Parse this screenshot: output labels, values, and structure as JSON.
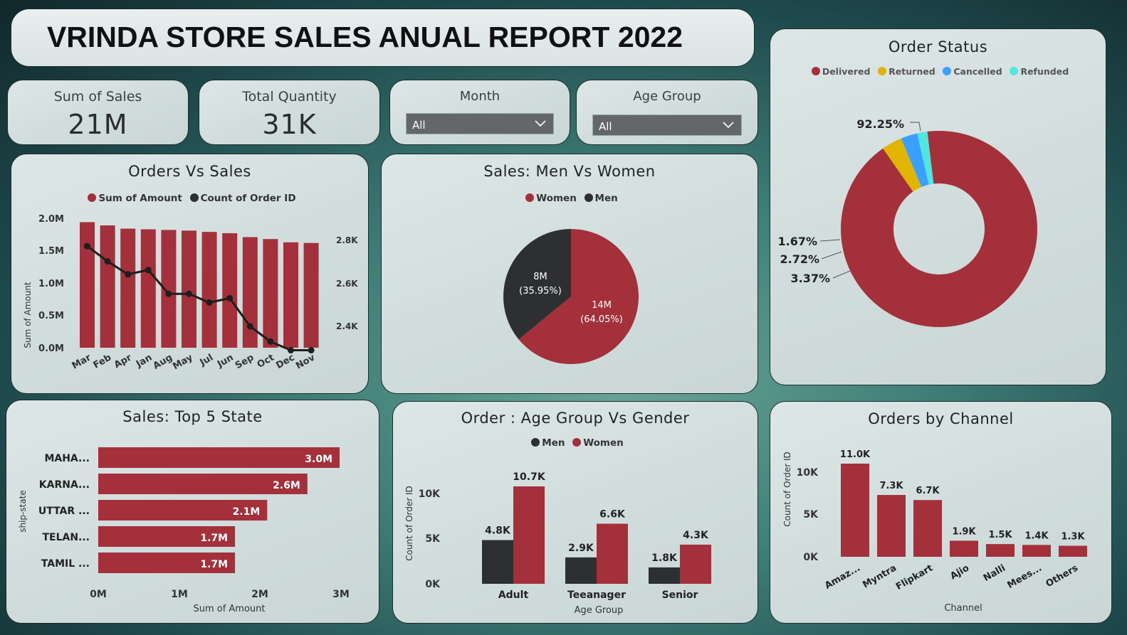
{
  "title": "VRINDA STORE SALES ANUAL REPORT 2022",
  "kpis": {
    "sales": {
      "label": "Sum of Sales",
      "value": "21M"
    },
    "quantity": {
      "label": "Total Quantity",
      "value": "31K"
    }
  },
  "slicers": {
    "month": {
      "label": "Month",
      "value": "All"
    },
    "age_group": {
      "label": "Age Group",
      "value": "All"
    }
  },
  "colors": {
    "red": "#a3303a",
    "dark": "#2d2f31",
    "yellow": "#e0b400",
    "blue": "#3aa0ff",
    "cyan": "#4fe8e0"
  },
  "charts": {
    "orders_vs_sales": {
      "title": "Orders Vs Sales",
      "legend": [
        "Sum of Amount",
        "Count of Order ID"
      ],
      "ylabel": "Sum of Amount",
      "y_ticks": [
        "2.0M",
        "1.5M",
        "1.0M",
        "0.5M",
        "0.0M"
      ],
      "y2_ticks": [
        "2.8K",
        "2.6K",
        "2.4K"
      ]
    },
    "men_women": {
      "title": "Sales: Men Vs Women",
      "legend": [
        "Women",
        "Men"
      ],
      "labels": [
        {
          "value": "14M",
          "pct": "(64.05%)"
        },
        {
          "value": "8M",
          "pct": "(35.95%)"
        }
      ]
    },
    "order_status": {
      "title": "Order Status",
      "legend": [
        "Delivered",
        "Returned",
        "Cancelled",
        "Refunded"
      ],
      "labels": [
        "92.25%",
        "1.67%",
        "2.72%",
        "3.37%"
      ]
    },
    "top_states": {
      "title": "Sales: Top 5 State",
      "ylabel": "ship-state",
      "xlabel": "Sum of Amount",
      "x_ticks": [
        "0M",
        "1M",
        "2M",
        "3M"
      ]
    },
    "age_gender": {
      "title": "Order : Age Group Vs Gender",
      "legend": [
        "Men",
        "Women"
      ],
      "ylabel": "Count of Order ID",
      "xlabel": "Age Group",
      "y_ticks": [
        "10K",
        "5K",
        "0K"
      ]
    },
    "channel": {
      "title": "Orders by Channel",
      "ylabel": "Count of Order ID",
      "xlabel": "Channel",
      "y_ticks": [
        "10K",
        "5K",
        "0K"
      ]
    }
  },
  "chart_data": [
    {
      "type": "bar",
      "title": "Orders Vs Sales",
      "categories": [
        "Mar",
        "Feb",
        "Apr",
        "Jan",
        "Aug",
        "May",
        "Jul",
        "Jun",
        "Sep",
        "Oct",
        "Dec",
        "Nov"
      ],
      "series": [
        {
          "name": "Sum of Amount",
          "type": "bar",
          "axis": "left",
          "values": [
            1.93,
            1.88,
            1.83,
            1.82,
            1.81,
            1.8,
            1.78,
            1.76,
            1.7,
            1.67,
            1.62,
            1.61
          ]
        },
        {
          "name": "Count of Order ID",
          "type": "line",
          "axis": "right",
          "values": [
            2.77,
            2.7,
            2.64,
            2.66,
            2.55,
            2.55,
            2.51,
            2.53,
            2.4,
            2.33,
            2.29,
            2.29
          ]
        }
      ],
      "ylabel": "Sum of Amount",
      "ylim": [
        0,
        2.0
      ],
      "y_unit": "M",
      "y2lim": [
        2.2,
        2.9
      ],
      "y2_unit": "K",
      "legend_position": "top"
    },
    {
      "type": "pie",
      "title": "Sales: Men Vs Women",
      "categories": [
        "Women",
        "Men"
      ],
      "values": [
        64.05,
        35.95
      ],
      "value_labels": [
        "14M",
        "8M"
      ],
      "legend_position": "top"
    },
    {
      "type": "pie",
      "variant": "donut",
      "title": "Order Status",
      "categories": [
        "Delivered",
        "Returned",
        "Cancelled",
        "Refunded"
      ],
      "values": [
        92.25,
        3.37,
        2.72,
        1.67
      ],
      "legend_position": "top"
    },
    {
      "type": "bar",
      "orientation": "horizontal",
      "title": "Sales: Top 5 State",
      "categories": [
        "MAHA...",
        "KARNA...",
        "UTTAR ...",
        "TELAN...",
        "TAMIL ..."
      ],
      "values": [
        3.0,
        2.6,
        2.1,
        1.7,
        1.7
      ],
      "value_labels": [
        "3.0M",
        "2.6M",
        "2.1M",
        "1.7M",
        "1.7M"
      ],
      "xlabel": "Sum of Amount",
      "ylabel": "ship-state",
      "xlim": [
        0,
        3
      ],
      "x_unit": "M"
    },
    {
      "type": "bar",
      "title": "Order : Age Group Vs Gender",
      "categories": [
        "Adult",
        "Teeanager",
        "Senior"
      ],
      "series": [
        {
          "name": "Men",
          "values": [
            4.8,
            2.9,
            1.8
          ],
          "labels": [
            "4.8K",
            "2.9K",
            "1.8K"
          ]
        },
        {
          "name": "Women",
          "values": [
            10.7,
            6.6,
            4.3
          ],
          "labels": [
            "10.7K",
            "6.6K",
            "4.3K"
          ]
        }
      ],
      "xlabel": "Age Group",
      "ylabel": "Count of Order ID",
      "ylim": [
        0,
        10.7
      ],
      "y_unit": "K",
      "legend_position": "top"
    },
    {
      "type": "bar",
      "title": "Orders by Channel",
      "categories": [
        "Amaz...",
        "Myntra",
        "Flipkart",
        "Ajio",
        "Nalli",
        "Mees...",
        "Others"
      ],
      "values": [
        11.0,
        7.3,
        6.7,
        1.9,
        1.5,
        1.4,
        1.3
      ],
      "value_labels": [
        "11.0K",
        "7.3K",
        "6.7K",
        "1.9K",
        "1.5K",
        "1.4K",
        "1.3K"
      ],
      "xlabel": "Channel",
      "ylabel": "Count of Order ID",
      "ylim": [
        0,
        11
      ],
      "y_unit": "K"
    }
  ]
}
